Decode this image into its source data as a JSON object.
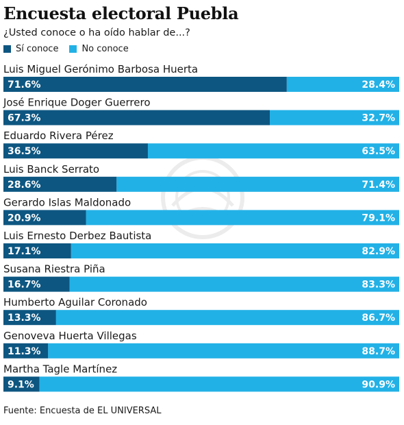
{
  "chart_data": {
    "type": "bar",
    "orientation": "horizontal",
    "stacked": true,
    "percent": true,
    "title": "Encuesta electoral Puebla",
    "subtitle": "¿Usted conoce o ha oído hablar de...?",
    "legend": [
      "Sí conoce",
      "No conoce"
    ],
    "legend_position": "top-left",
    "colors": {
      "si": "#0d5681",
      "no": "#22b1e6"
    },
    "xlim": [
      0,
      100
    ],
    "categories": [
      "Luis Miguel Gerónimo Barbosa Huerta",
      "José Enrique Doger Guerrero",
      "Eduardo Rivera Pérez",
      "Luis Banck Serrato",
      "Gerardo Islas Maldonado",
      "Luis Ernesto Derbez Bautista",
      "Susana Riestra Piña",
      "Humberto Aguilar Coronado",
      "Genoveva Huerta Villegas",
      "Martha Tagle Martínez"
    ],
    "series": [
      {
        "name": "Sí conoce",
        "values": [
          71.6,
          67.3,
          36.5,
          28.6,
          20.9,
          17.1,
          16.7,
          13.3,
          11.3,
          9.1
        ]
      },
      {
        "name": "No conoce",
        "values": [
          28.4,
          32.7,
          63.5,
          71.4,
          79.1,
          82.9,
          83.3,
          86.7,
          88.7,
          90.9
        ]
      }
    ],
    "value_labels": {
      "si": [
        "71.6%",
        "67.3%",
        "36.5%",
        "28.6%",
        "20.9%",
        "17.1%",
        "16.7%",
        "13.3%",
        "11.3%",
        "9.1%"
      ],
      "no": [
        "28.4%",
        "32.7%",
        "63.5%",
        "71.4%",
        "79.1%",
        "82.9%",
        "83.3%",
        "86.7%",
        "88.7%",
        "90.9%"
      ]
    }
  },
  "source": "Fuente: Encuesta de EL UNIVERSAL"
}
